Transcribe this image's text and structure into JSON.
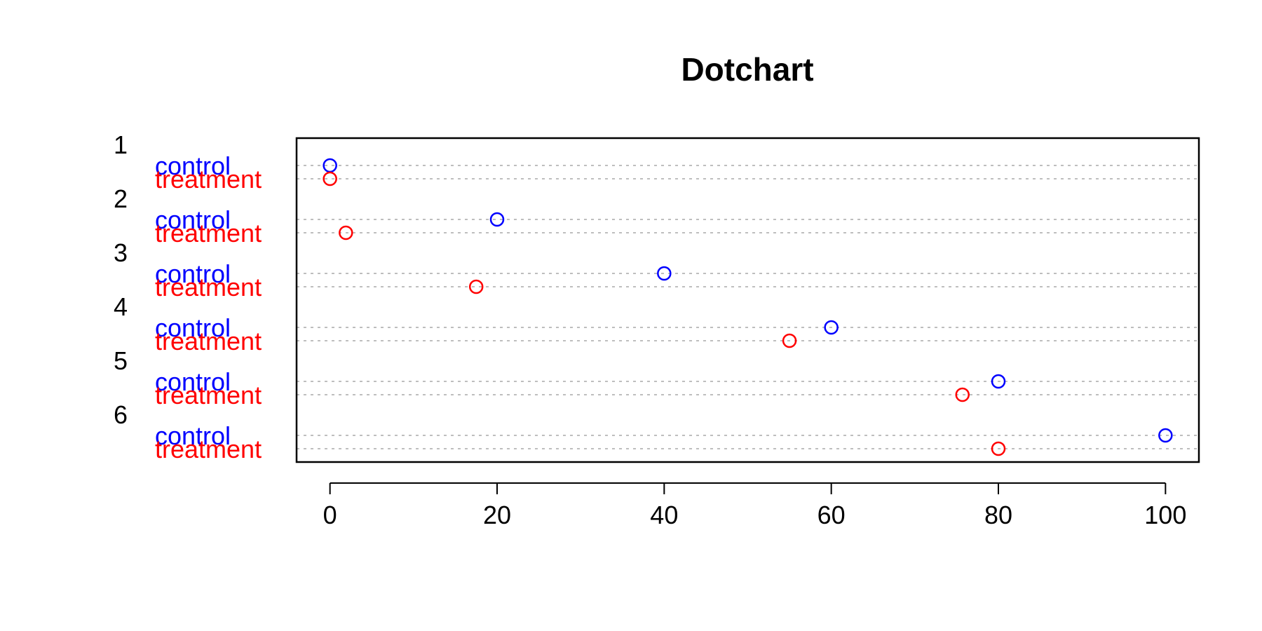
{
  "chart_data": {
    "type": "scatter",
    "subtype": "dotchart",
    "title": "Dotchart",
    "xlabel": "",
    "ylabel": "",
    "xlim": [
      -4,
      104
    ],
    "x_ticks": [
      0,
      20,
      40,
      60,
      80,
      100
    ],
    "x_tick_labels": [
      "0",
      "20",
      "40",
      "60",
      "80",
      "100"
    ],
    "grid": "dotted horizontal lines per row",
    "groups": [
      "1",
      "2",
      "3",
      "4",
      "5",
      "6"
    ],
    "row_labels": [
      "control",
      "treatment"
    ],
    "series": [
      {
        "label_color": "#0000ff",
        "values": [
          0,
          20,
          40,
          60,
          80,
          100
        ]
      },
      {
        "label_color": "#ff0000",
        "values": [
          0,
          1.9,
          17.5,
          55,
          75.7,
          80
        ]
      }
    ],
    "colors": {
      "control": "#0000ff",
      "treatment": "#ff0000",
      "grid": "#bebebe",
      "frame": "#000000"
    },
    "marker": "open-circle"
  }
}
